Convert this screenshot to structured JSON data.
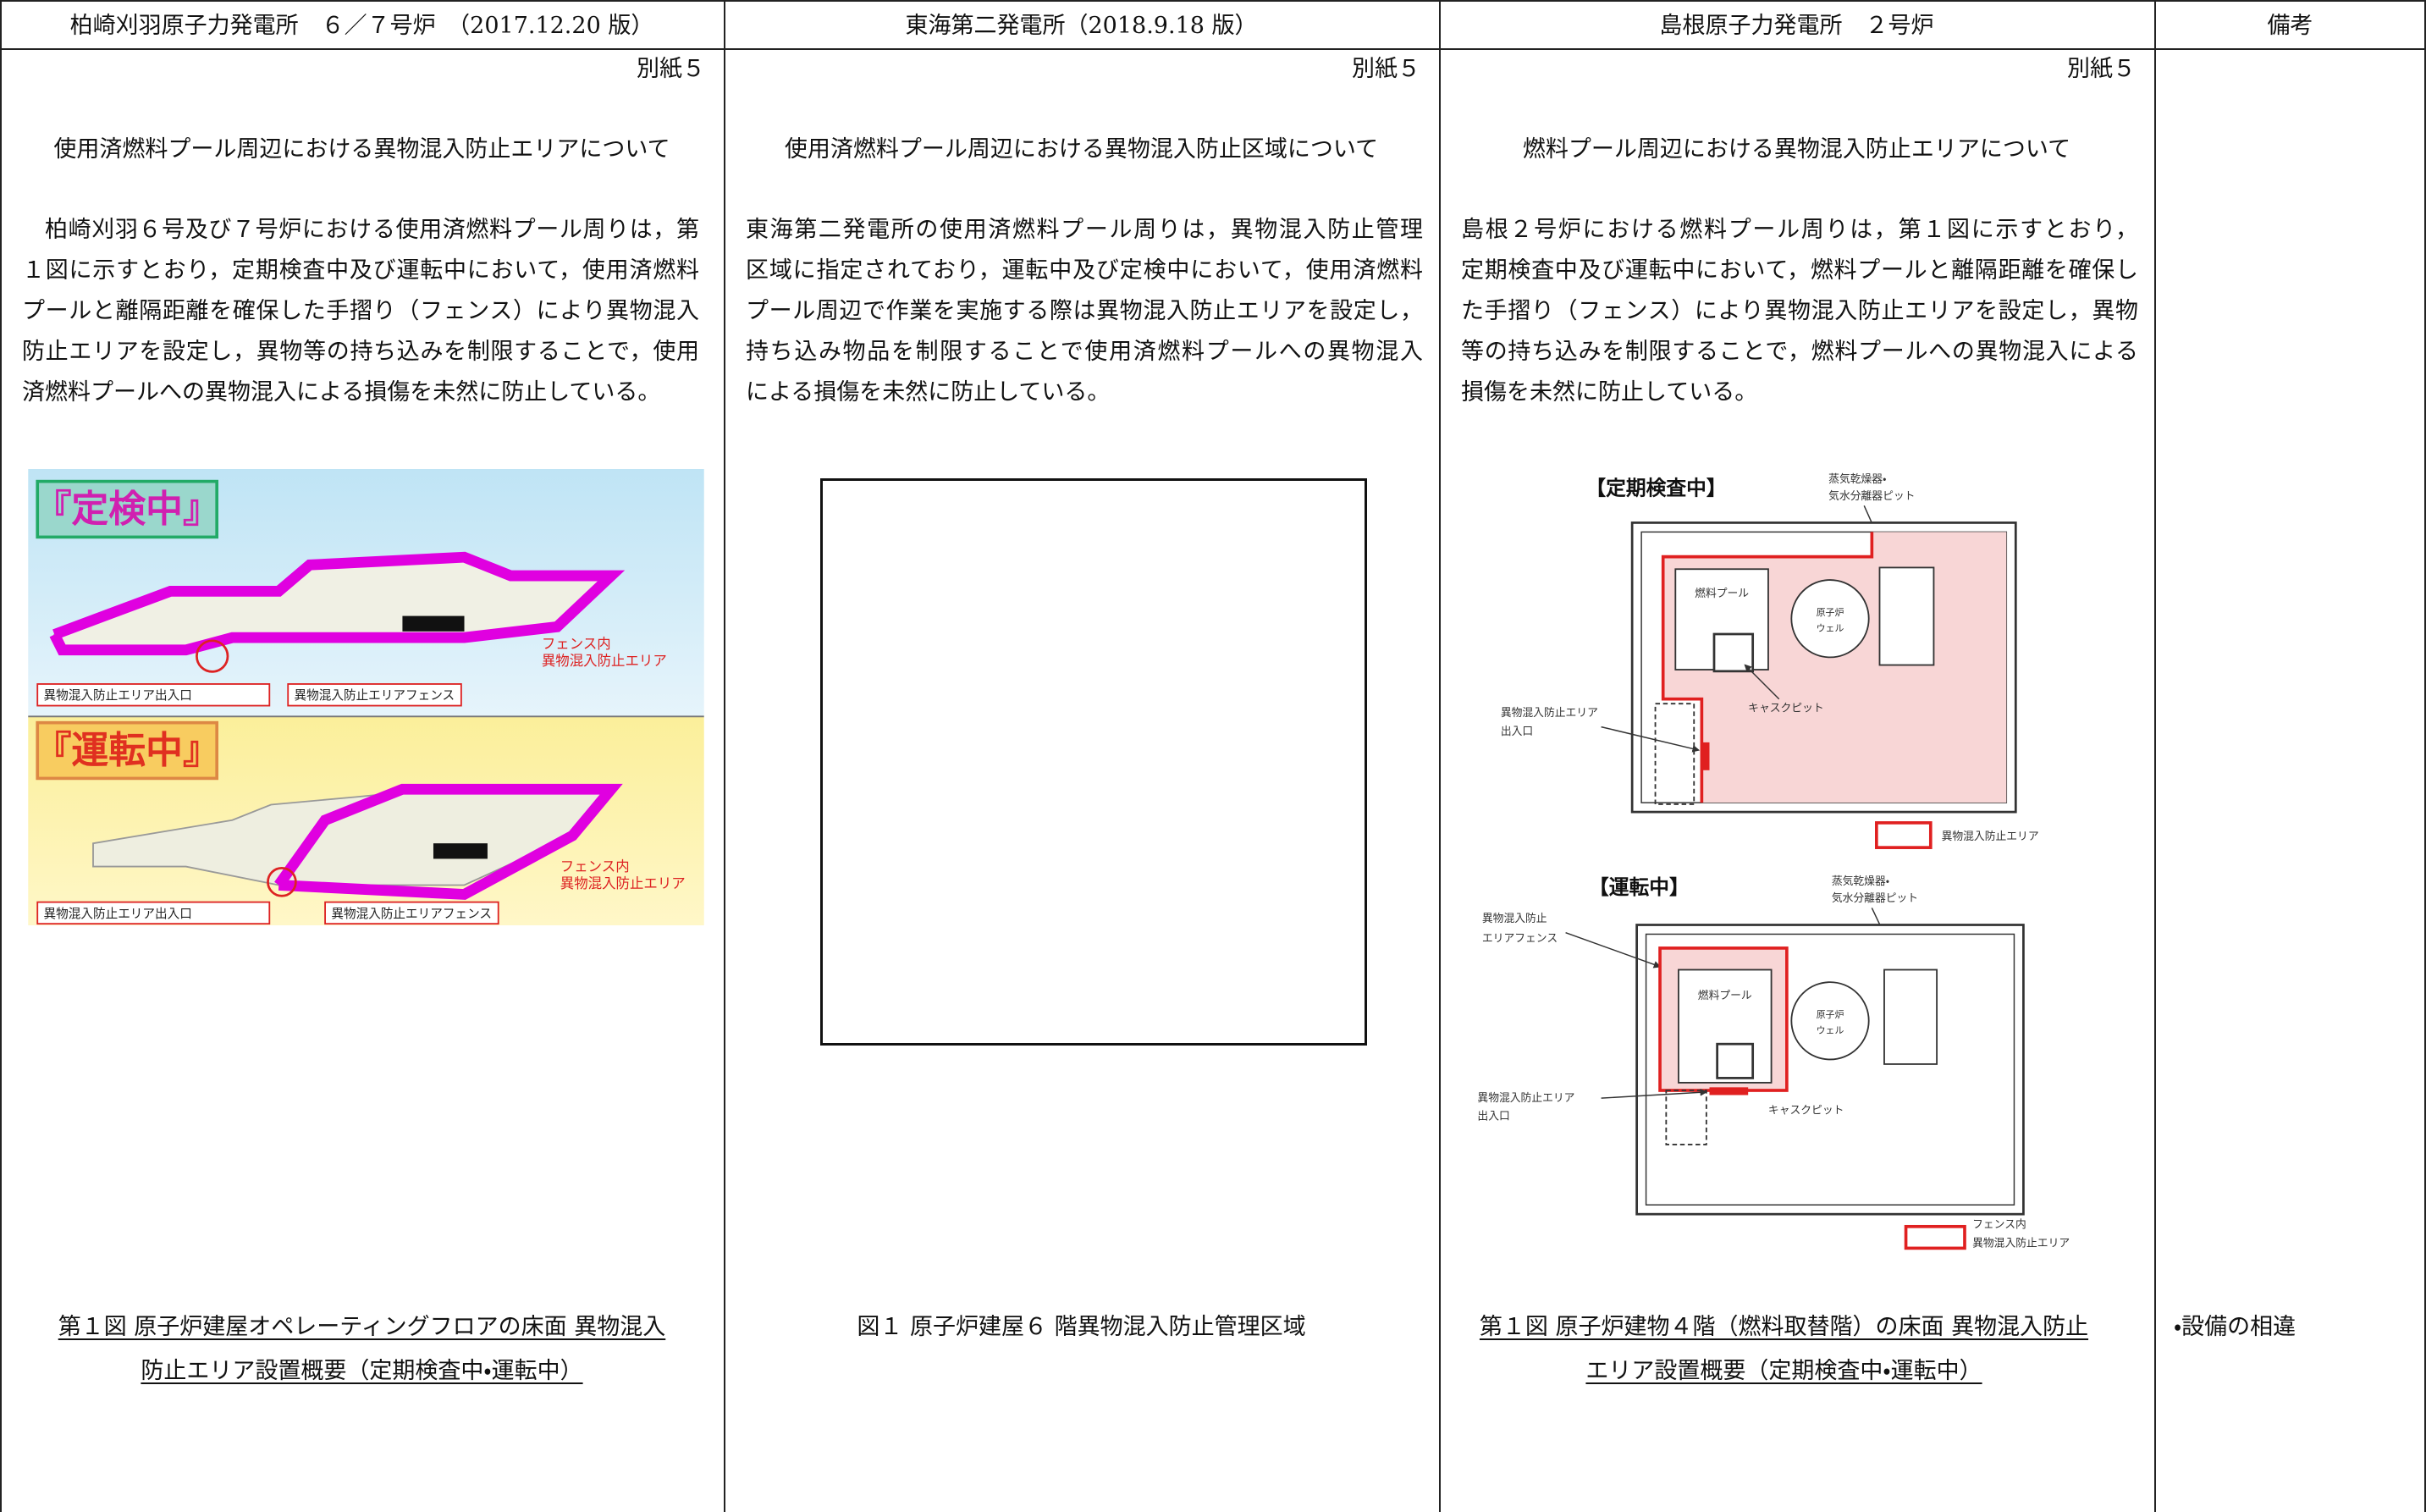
{
  "header": [
    "柏崎刈羽原子力発電所　６／７号炉　（2017.12.20 版）",
    "東海第二発電所（2018.9.18 版）",
    "島根原子力発電所　２号炉",
    "備考"
  ],
  "columns": [
    {
      "attachment": "別紙５",
      "title": "使用済燃料プール周辺における異物混入防止エリアについて",
      "body": [
        "柏崎刈羽６号及び７号炉における使用済燃料プール周りは，第",
        "１図に示すとおり，定期検査中及び運転中において，使用済燃料",
        "プールと離隔距離を確保した手摺り（フェンス）により異物混入",
        "防止エリアを設定し，異物等の持ち込みを制限することで，使用",
        "済燃料プールへの異物混入による損傷を未然に防止している。"
      ],
      "figure": {
        "panels": [
          {
            "state": "『定検中』",
            "zone": [
              "フェンス内",
              "異物混入防止エリア"
            ],
            "entrance": "異物混入防止エリア出入口",
            "fence": "異物混入防止エリアフェンス"
          },
          {
            "state": "『運転中』",
            "zone": [
              "フェンス内",
              "異物混入防止エリア"
            ],
            "entrance": "異物混入防止エリア出入口",
            "fence": "異物混入防止エリアフェンス"
          }
        ]
      },
      "caption": [
        "第１図 原子炉建屋オペレーティングフロアの床面 異物混入",
        "防止エリア設置概要（定期検査中・運転中）"
      ]
    },
    {
      "attachment": "別紙５",
      "title": "使用済燃料プール周辺における異物混入防止区域について",
      "body": [
        "東海第二発電所の使用済燃料プール周りは，異物混入防止管理",
        "区域に指定されており，運転中及び定検中において，使用済燃料",
        "プール周辺で作業を実施する際は異物混入防止エリアを設定し，",
        "持ち込み物品を制限することで使用済燃料プールへの異物混入",
        "による損傷を未然に防止している。"
      ],
      "caption": [
        "図１ 原子炉建屋６ 階異物混入防止管理区域"
      ]
    },
    {
      "attachment": "別紙５",
      "title": "燃料プール周辺における異物混入防止エリアについて",
      "body": [
        "島根２号炉における燃料プール周りは，第１図に示すとおり，",
        "定期検査中及び運転中において，燃料プールと離隔距離を確保し",
        "た手摺り（フェンス）により異物混入防止エリアを設定し，異物",
        "等の持ち込みを制限することで，燃料プールへの異物混入による",
        "損傷を未然に防止している。"
      ],
      "figure": {
        "top": {
          "heading": "【定期検査中】",
          "pit": [
            "蒸気乾燥器・",
            "気水分離器ピット"
          ],
          "pool": "燃料プール",
          "well": [
            "原子炉",
            "ウェル"
          ],
          "cask": "キャスクピット",
          "entrance": [
            "異物混入防止エリア",
            "出入口"
          ],
          "legend": [
            "異物混入防止エリア"
          ]
        },
        "bottom": {
          "heading": "【運転中】",
          "pit": [
            "蒸気乾燥器・",
            "気水分離器ピット"
          ],
          "pool": "燃料プール",
          "well": [
            "原子炉",
            "ウェル"
          ],
          "cask": "キャスクピット",
          "entrance": [
            "異物混入防止エリア",
            "出入口"
          ],
          "fence": [
            "異物混入防止",
            "エリアフェンス"
          ],
          "legend": [
            "フェンス内",
            "異物混入防止エリア"
          ]
        }
      },
      "caption": [
        "第１図 原子炉建物４階（燃料取替階）の床面 異物混入防止",
        "エリア設置概要（定期検査中・運転中）"
      ]
    }
  ],
  "remarks": "・設備の相違"
}
